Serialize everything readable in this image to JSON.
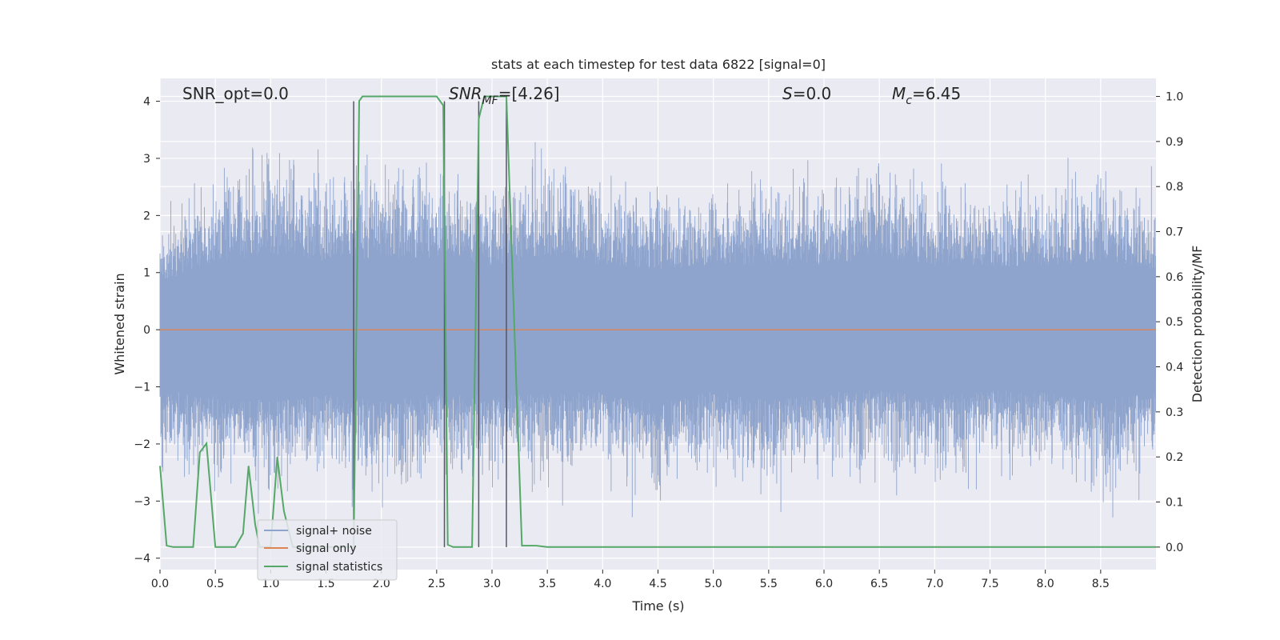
{
  "chart_data": {
    "type": "line",
    "title": "stats at each timestep for test data 6822 [signal=0]",
    "xlabel": "Time (s)",
    "ylabel": "Whitened strain",
    "ylabel_right": "Detection probability/MF",
    "xlim": [
      0.0,
      9.0
    ],
    "ylim": [
      -4.2,
      4.4
    ],
    "ylim_right": [
      -0.05,
      1.04
    ],
    "x_ticks": [
      "0.0",
      "0.5",
      "1.0",
      "1.5",
      "2.0",
      "2.5",
      "3.0",
      "3.5",
      "4.0",
      "4.5",
      "5.0",
      "5.5",
      "6.0",
      "6.5",
      "7.0",
      "7.5",
      "8.0",
      "8.5"
    ],
    "y_ticks": [
      "4",
      "3",
      "2",
      "1",
      "0",
      "−1",
      "−2",
      "−3",
      "−4"
    ],
    "y_right_ticks": [
      "1.0",
      "0.9",
      "0.8",
      "0.7",
      "0.6",
      "0.5",
      "0.4",
      "0.3",
      "0.2",
      "0.1",
      "0.0"
    ],
    "grid": true,
    "legend_position": "lower-left",
    "annotations": {
      "snr_opt": "SNR_opt=0.0",
      "snr_mf_main": "SNR",
      "snr_mf_sub": "MF",
      "snr_mf_value": "=[4.26]",
      "s_main": "S",
      "s_value": "=0.0",
      "mc_main": "M",
      "mc_sub": "c",
      "mc_value": "=6.45"
    },
    "vertical_lines_x": [
      1.75,
      2.57,
      2.88,
      3.13
    ],
    "series": [
      {
        "name": "signal+ noise",
        "color": "#8fa4cc",
        "axis": "left",
        "description_envelope": {
          "x": [
            0.0,
            0.5,
            1.0,
            1.5,
            2.0,
            2.5,
            3.0,
            3.5,
            4.0,
            4.5,
            5.0,
            5.5,
            6.0,
            6.5,
            7.0,
            7.5,
            8.0,
            8.5,
            9.0
          ],
          "upper": [
            2.3,
            3.4,
            3.8,
            3.4,
            3.6,
            3.6,
            3.2,
            3.7,
            3.2,
            3.0,
            3.1,
            3.3,
            3.2,
            3.6,
            3.2,
            3.1,
            3.2,
            3.4,
            2.9
          ],
          "lower": [
            -3.0,
            -3.3,
            -3.4,
            -3.2,
            -3.6,
            -3.2,
            -3.3,
            -3.2,
            -3.1,
            -3.7,
            -3.0,
            -3.5,
            -3.1,
            -3.0,
            -3.3,
            -3.0,
            -3.1,
            -3.6,
            -3.0
          ]
        }
      },
      {
        "name": "signal only",
        "color": "#dd8452",
        "axis": "left",
        "x": [
          0.0,
          9.0
        ],
        "y": [
          0.0,
          0.0
        ]
      },
      {
        "name": "signal statistics",
        "color": "#55a868",
        "axis": "right",
        "x": [
          0.0,
          0.06,
          0.12,
          0.3,
          0.36,
          0.42,
          0.5,
          0.68,
          0.75,
          0.8,
          0.86,
          0.9,
          1.0,
          1.06,
          1.12,
          1.2,
          1.3,
          1.5,
          1.75,
          1.8,
          1.83,
          2.5,
          2.56,
          2.6,
          2.65,
          2.82,
          2.88,
          2.93,
          2.97,
          3.13,
          3.2,
          3.27,
          3.4,
          3.5,
          4.0,
          5.0,
          6.0,
          7.0,
          8.0,
          9.0
        ],
        "y": [
          0.18,
          0.003,
          0.0,
          0.0,
          0.21,
          0.23,
          0.0,
          0.0,
          0.03,
          0.18,
          0.05,
          0.0,
          0.0,
          0.2,
          0.08,
          0.0,
          0.0,
          0.0,
          0.0,
          0.99,
          1.0,
          1.0,
          0.98,
          0.005,
          0.0,
          0.0,
          0.95,
          1.0,
          1.0,
          1.0,
          0.5,
          0.003,
          0.003,
          0.0,
          0.0,
          0.0,
          0.0,
          0.0,
          0.0,
          0.0
        ]
      }
    ]
  }
}
